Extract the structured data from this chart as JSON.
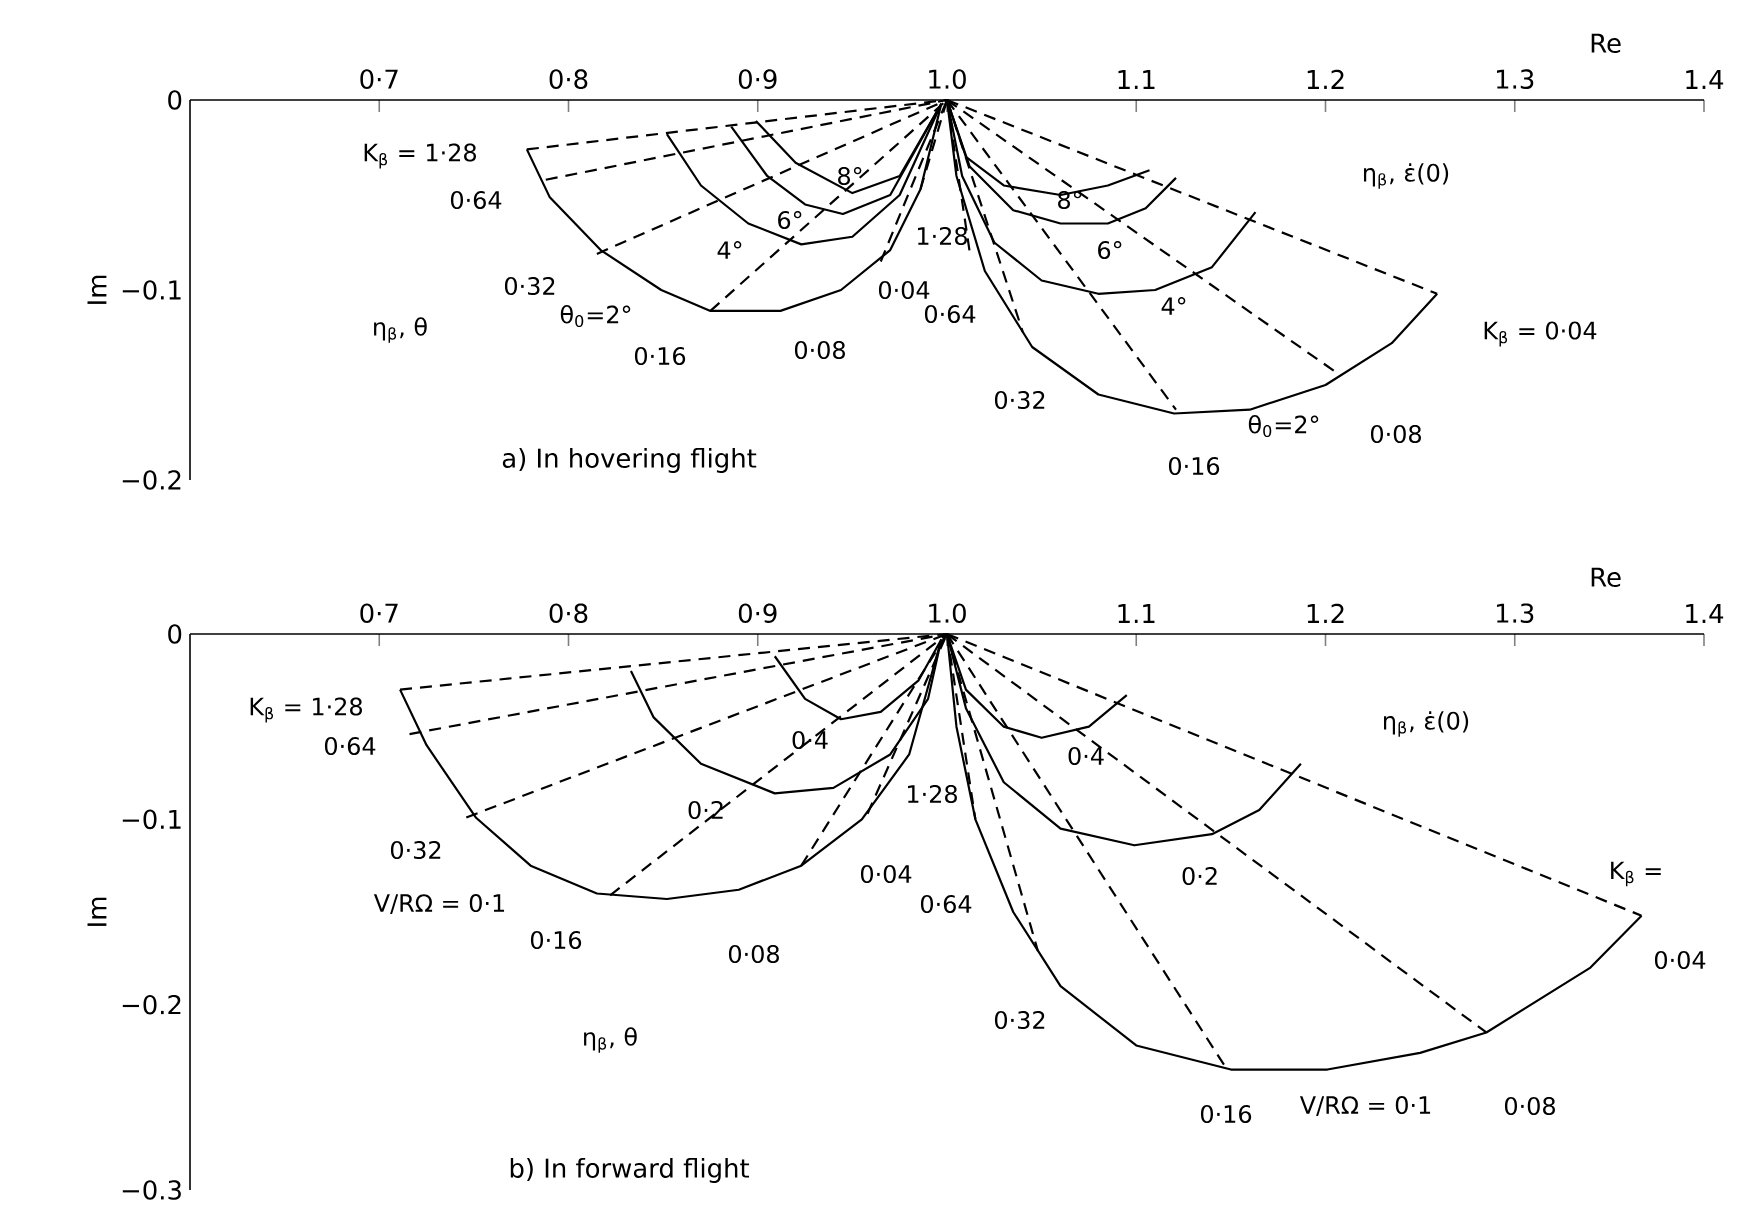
{
  "chart_data": [
    {
      "type": "line",
      "title": "a)  In hovering flight",
      "xlabel": "Re",
      "ylabel": "Im",
      "color": "#000000",
      "marker": "none",
      "xlim": [
        0.6,
        1.4
      ],
      "ylim": [
        -0.2,
        0
      ],
      "xticks": [
        {
          "value": 0.7,
          "label": "0·7"
        },
        {
          "value": 0.8,
          "label": "0·8"
        },
        {
          "value": 0.9,
          "label": "0·9"
        },
        {
          "value": 1.0,
          "label": "1.0"
        },
        {
          "value": 1.1,
          "label": "1.1"
        },
        {
          "value": 1.2,
          "label": "1.2"
        },
        {
          "value": 1.3,
          "label": "1.3"
        },
        {
          "value": 1.4,
          "label": "1.4"
        }
      ],
      "yticks": [
        {
          "value": 0,
          "label": "0"
        },
        {
          "value": -0.1,
          "label": "−0.1"
        },
        {
          "value": -0.2,
          "label": "−0.2"
        }
      ],
      "series": [
        {
          "line_style": "solid",
          "x": [
            0.778,
            0.79,
            0.817,
            0.849,
            0.875,
            0.912,
            0.944,
            0.97,
            0.986,
            0.997
          ],
          "values": [
            -0.026,
            -0.051,
            -0.079,
            -0.1,
            -0.111,
            -0.111,
            -0.1,
            -0.079,
            -0.047,
            -0.002
          ]
        },
        {
          "line_style": "solid",
          "x": [
            0.852,
            0.87,
            0.895,
            0.923,
            0.95,
            0.975,
            0.997
          ],
          "values": [
            -0.018,
            -0.045,
            -0.065,
            -0.076,
            -0.072,
            -0.05,
            -0.002
          ]
        },
        {
          "line_style": "solid",
          "x": [
            0.886,
            0.905,
            0.925,
            0.945,
            0.97,
            0.997
          ],
          "values": [
            -0.014,
            -0.04,
            -0.055,
            -0.06,
            -0.05,
            -0.002
          ]
        },
        {
          "line_style": "solid",
          "x": [
            0.899,
            0.92,
            0.95,
            0.975,
            0.997
          ],
          "values": [
            -0.011,
            -0.033,
            -0.049,
            -0.04,
            -0.002
          ]
        },
        {
          "line_style": "dashed",
          "x": [
            0.778,
            1.0
          ],
          "values": [
            -0.026,
            0
          ]
        },
        {
          "line_style": "dashed",
          "x": [
            0.788,
            1.0
          ],
          "values": [
            -0.042,
            0
          ]
        },
        {
          "line_style": "dashed",
          "x": [
            0.815,
            1.0
          ],
          "values": [
            -0.081,
            0
          ]
        },
        {
          "line_style": "dashed",
          "x": [
            0.875,
            1.0
          ],
          "values": [
            -0.111,
            0
          ]
        },
        {
          "line_style": "dashed",
          "x": [
            0.965,
            1.0
          ],
          "values": [
            -0.085,
            0
          ]
        },
        {
          "line_style": "dashed",
          "x": [
            0.986,
            1.0
          ],
          "values": [
            -0.047,
            0
          ]
        },
        {
          "line_style": "solid",
          "x": [
            1.0,
            1.005,
            1.02,
            1.045,
            1.08,
            1.12,
            1.16,
            1.2,
            1.235,
            1.259
          ],
          "values": [
            0,
            -0.04,
            -0.09,
            -0.13,
            -0.155,
            -0.165,
            -0.163,
            -0.15,
            -0.128,
            -0.102
          ]
        },
        {
          "line_style": "solid",
          "x": [
            1.0,
            1.008,
            1.025,
            1.05,
            1.08,
            1.11,
            1.14,
            1.163
          ],
          "values": [
            0,
            -0.04,
            -0.075,
            -0.095,
            -0.102,
            -0.1,
            -0.088,
            -0.059
          ]
        },
        {
          "line_style": "solid",
          "x": [
            1.0,
            1.012,
            1.035,
            1.06,
            1.085,
            1.105,
            1.121
          ],
          "values": [
            0,
            -0.035,
            -0.058,
            -0.065,
            -0.065,
            -0.057,
            -0.041
          ]
        },
        {
          "line_style": "solid",
          "x": [
            1.0,
            1.01,
            1.03,
            1.06,
            1.085,
            1.107
          ],
          "values": [
            0,
            -0.03,
            -0.045,
            -0.05,
            -0.045,
            -0.037
          ]
        },
        {
          "line_style": "dashed",
          "x": [
            1.0,
            1.259
          ],
          "values": [
            0,
            -0.102
          ]
        },
        {
          "line_style": "dashed",
          "x": [
            1.0,
            1.208
          ],
          "values": [
            0,
            -0.145
          ]
        },
        {
          "line_style": "dashed",
          "x": [
            1.0,
            1.121
          ],
          "values": [
            0,
            -0.163
          ]
        },
        {
          "line_style": "dashed",
          "x": [
            1.0,
            1.04
          ],
          "values": [
            0,
            -0.122
          ]
        },
        {
          "line_style": "dashed",
          "x": [
            1.0,
            1.012
          ],
          "values": [
            0,
            -0.08
          ]
        }
      ],
      "annotations": [
        "K$_{β}$ = 1·28",
        "0·64",
        "0·32",
        "η$_{β}$, θ",
        "θ$_{0}$=2°",
        "0·16",
        "0·08",
        "4°",
        "6°",
        "8°",
        "0·04",
        "1·28",
        "0·64",
        "0·32",
        "0·16",
        "θ$_{0}$=2°",
        "0·08",
        "K$_{β}$ = 0·04",
        "η$_{β}$, ε̇(0)",
        "8°",
        "6°",
        "4°"
      ]
    },
    {
      "type": "line",
      "title": "b)  In forward flight",
      "xlabel": "Re",
      "ylabel": "Im",
      "color": "#000000",
      "marker": "none",
      "xlim": [
        0.6,
        1.4
      ],
      "ylim": [
        -0.3,
        0
      ],
      "xticks": [
        {
          "value": 0.7,
          "label": "0·7"
        },
        {
          "value": 0.8,
          "label": "0·8"
        },
        {
          "value": 0.9,
          "label": "0·9"
        },
        {
          "value": 1.0,
          "label": "1.0"
        },
        {
          "value": 1.1,
          "label": "1.1"
        },
        {
          "value": 1.2,
          "label": "1.2"
        },
        {
          "value": 1.3,
          "label": "1.3"
        },
        {
          "value": 1.4,
          "label": "1.4"
        }
      ],
      "yticks": [
        {
          "value": 0,
          "label": "0"
        },
        {
          "value": -0.1,
          "label": "−0.1"
        },
        {
          "value": -0.2,
          "label": "−0.2"
        },
        {
          "value": -0.3,
          "label": "−0.3"
        }
      ],
      "series": [
        {
          "line_style": "solid",
          "x": [
            0.711,
            0.725,
            0.751,
            0.78,
            0.815,
            0.852,
            0.89,
            0.923,
            0.955,
            0.98,
            0.997
          ],
          "values": [
            -0.03,
            -0.06,
            -0.099,
            -0.125,
            -0.14,
            -0.143,
            -0.138,
            -0.125,
            -0.1,
            -0.065,
            -0.003
          ]
        },
        {
          "line_style": "solid",
          "x": [
            0.833,
            0.845,
            0.87,
            0.909,
            0.94,
            0.97,
            0.99,
            0.997
          ],
          "values": [
            -0.02,
            -0.045,
            -0.07,
            -0.086,
            -0.083,
            -0.065,
            -0.035,
            -0.003
          ]
        },
        {
          "line_style": "solid",
          "x": [
            0.909,
            0.925,
            0.944,
            0.965,
            0.985,
            0.997
          ],
          "values": [
            -0.012,
            -0.035,
            -0.046,
            -0.042,
            -0.025,
            -0.003
          ]
        },
        {
          "line_style": "dashed",
          "x": [
            0.711,
            1.0
          ],
          "values": [
            -0.03,
            0
          ]
        },
        {
          "line_style": "dashed",
          "x": [
            0.716,
            1.0
          ],
          "values": [
            -0.054,
            0
          ]
        },
        {
          "line_style": "dashed",
          "x": [
            0.746,
            1.0
          ],
          "values": [
            -0.099,
            0
          ]
        },
        {
          "line_style": "dashed",
          "x": [
            0.822,
            1.0
          ],
          "values": [
            -0.141,
            0
          ]
        },
        {
          "line_style": "dashed",
          "x": [
            0.923,
            1.0
          ],
          "values": [
            -0.125,
            0
          ]
        },
        {
          "line_style": "dashed",
          "x": [
            0.958,
            1.0
          ],
          "values": [
            -0.097,
            0
          ]
        },
        {
          "line_style": "solid",
          "x": [
            1.0,
            1.005,
            1.015,
            1.035,
            1.06,
            1.1,
            1.15,
            1.201,
            1.25,
            1.285,
            1.34,
            1.367
          ],
          "values": [
            0,
            -0.05,
            -0.1,
            -0.15,
            -0.19,
            -0.222,
            -0.235,
            -0.235,
            -0.226,
            -0.215,
            -0.18,
            -0.152
          ]
        },
        {
          "line_style": "solid",
          "x": [
            1.0,
            1.01,
            1.03,
            1.06,
            1.099,
            1.14,
            1.165,
            1.187
          ],
          "values": [
            0,
            -0.04,
            -0.08,
            -0.105,
            -0.114,
            -0.108,
            -0.095,
            -0.07
          ]
        },
        {
          "line_style": "solid",
          "x": [
            1.0,
            1.01,
            1.03,
            1.05,
            1.075,
            1.095
          ],
          "values": [
            0,
            -0.03,
            -0.05,
            -0.056,
            -0.05,
            -0.033
          ]
        },
        {
          "line_style": "dashed",
          "x": [
            1.0,
            1.367
          ],
          "values": [
            0,
            -0.152
          ]
        },
        {
          "line_style": "dashed",
          "x": [
            1.0,
            1.285
          ],
          "values": [
            0,
            -0.215
          ]
        },
        {
          "line_style": "dashed",
          "x": [
            1.0,
            1.148
          ],
          "values": [
            0,
            -0.235
          ]
        },
        {
          "line_style": "dashed",
          "x": [
            1.0,
            1.048
          ],
          "values": [
            0,
            -0.171
          ]
        },
        {
          "line_style": "dashed",
          "x": [
            1.0,
            1.015
          ],
          "values": [
            0,
            -0.1
          ]
        }
      ],
      "annotations": [
        "K$_{β}$ = 1·28",
        "0·64",
        "0·32",
        "V/RΩ = 0·1",
        "0·16",
        "0·08",
        "η$_{β}$, θ",
        "0·4",
        "0·2",
        "0·04",
        "1·28",
        "0·64",
        "0·32",
        "0·16",
        "V/RΩ = 0·1",
        "0·08",
        "K$_{β}$ =",
        "0·04",
        "η$_{β}$, ε̇(0)",
        "0·4",
        "0·2"
      ]
    }
  ]
}
